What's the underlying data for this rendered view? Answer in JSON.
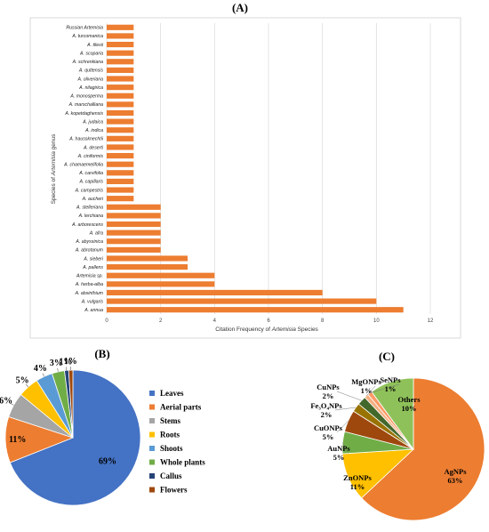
{
  "chart_data": [
    {
      "panel": "(A)",
      "type": "bar",
      "orientation": "horizontal",
      "categories": [
        "Russian Artemisia",
        "A. turcomanica",
        "A. tilesii",
        "A. scoparia",
        "A. schrenkiana",
        "A. quttensis",
        "A. oliveriana",
        "A. nilagirica",
        "A. monosperma",
        "A. marschalliana",
        "A. kopetdaghensis",
        "A. judaica",
        "A. indica",
        "A. haussknechtii",
        "A. deserti",
        "A. ciniformis",
        "A. chamaemelifolia",
        "A. carvifolia",
        "A. capillaris",
        "A. campestris",
        "A. aucheri",
        "A. stelleriana",
        "A. lerchiana",
        "A. arborescens",
        "A. afra",
        "A. abyssinica",
        "A. abrotanum",
        "A. sieberi",
        "A. pallens",
        "Artemisia sp.",
        "A. herba-alba",
        "A. absinthium",
        "A. vulgaris",
        "A. annua"
      ],
      "values": [
        1,
        1,
        1,
        1,
        1,
        1,
        1,
        1,
        1,
        1,
        1,
        1,
        1,
        1,
        1,
        1,
        1,
        1,
        1,
        1,
        1,
        2,
        2,
        2,
        2,
        2,
        2,
        3,
        3,
        4,
        4,
        8,
        10,
        11
      ],
      "xlabel_pre": "Citation Frequency of ",
      "xlabel_em": "Artemisia",
      "xlabel_post": " Species",
      "ylabel_pre": "Species of ",
      "ylabel_em": "Artemisia",
      "ylabel_post": " genus",
      "xlim": [
        0,
        12
      ],
      "xticks": [
        0,
        2,
        4,
        6,
        8,
        10,
        12
      ],
      "grid": true,
      "color": "#ED7D31"
    },
    {
      "panel": "(B)",
      "type": "pie",
      "labels": [
        "Leaves",
        "Aerial parts",
        "Stems",
        "Roots",
        "Shoots",
        "Whole plants",
        "Callus",
        "Flowers"
      ],
      "values": [
        69,
        11,
        6,
        5,
        4,
        3,
        1,
        1
      ],
      "pct_labels": [
        "69%",
        "11%",
        "6%",
        "5%",
        "4%",
        "3%",
        "1%",
        "1%"
      ],
      "colors": [
        "#4472C4",
        "#ED7D31",
        "#A5A5A5",
        "#FFC000",
        "#5B9BD5",
        "#70AD47",
        "#264478",
        "#9E480E"
      ],
      "legend": "right"
    },
    {
      "panel": "(C)",
      "type": "pie",
      "labels": [
        "AgNPs",
        "ZnONPs",
        "AuNPs",
        "CuONPs",
        "Fe₃O₄NPs",
        "CuNPs",
        "MgONPs",
        "SeNPs",
        "Others"
      ],
      "values": [
        63,
        11,
        5,
        5,
        2,
        2,
        1,
        1,
        10
      ],
      "pct_labels": [
        "63%",
        "11%",
        "5%",
        "5%",
        "2%",
        "2%",
        "1%",
        "1%",
        "10%"
      ],
      "colors": [
        "#ED7D31",
        "#FFC000",
        "#70AD47",
        "#9E480E",
        "#997300",
        "#43682B",
        "#F4B183",
        "#FF9966",
        "#8FC15A"
      ],
      "legend": "none"
    }
  ]
}
